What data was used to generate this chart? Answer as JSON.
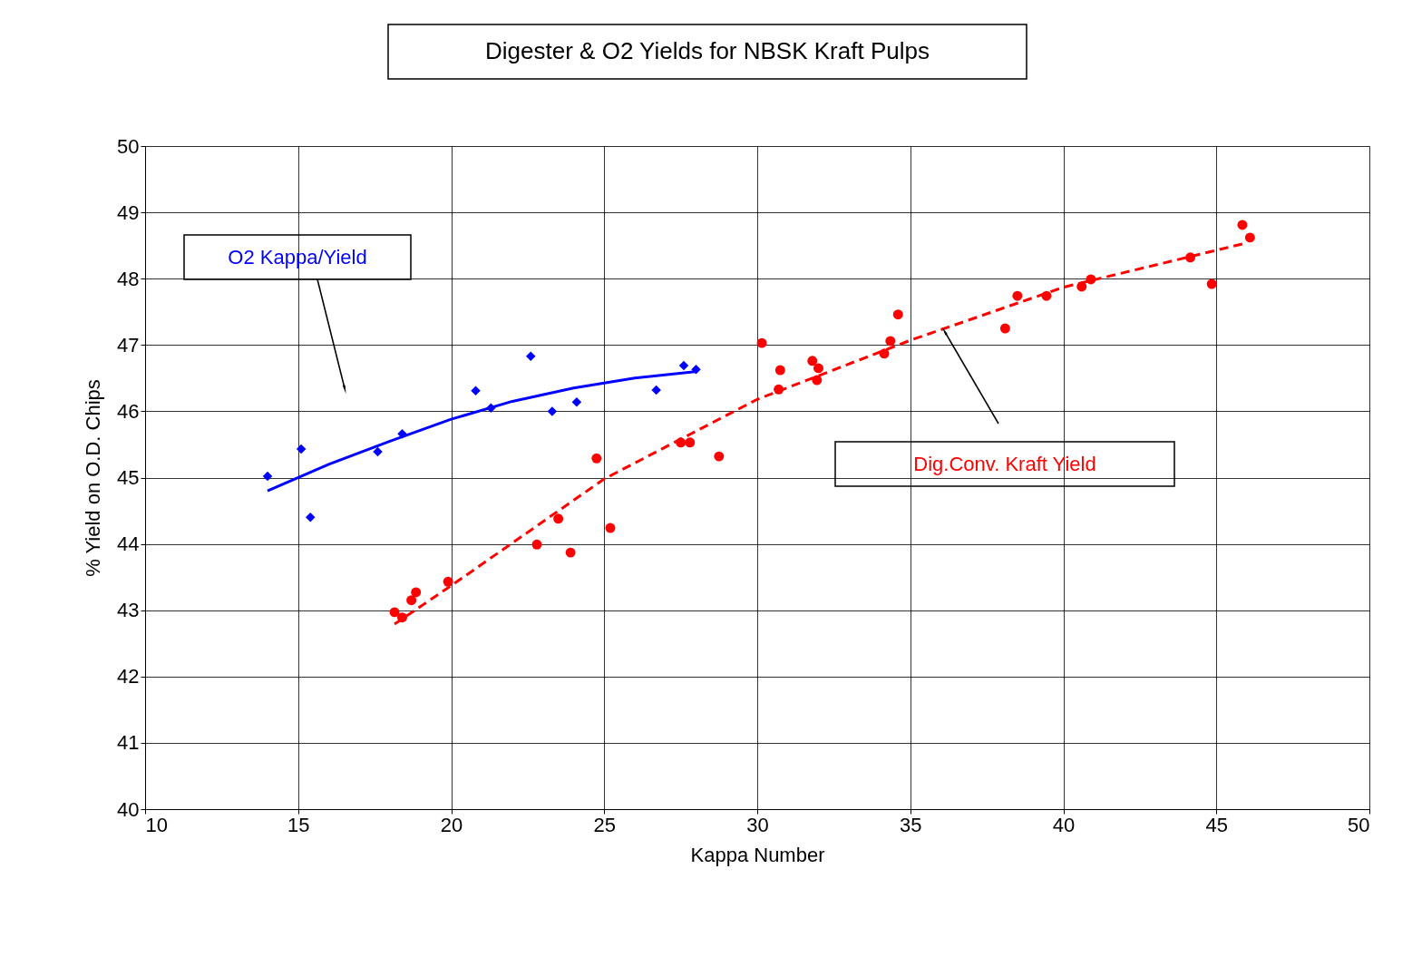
{
  "chart_data": {
    "type": "scatter",
    "title": "Digester & O2 Yields for NBSK Kraft Pulps",
    "xlabel": "Kappa Number",
    "ylabel": "% Yield on O.D. Chips",
    "xlim": [
      10,
      50
    ],
    "ylim": [
      40,
      50
    ],
    "xticks": [
      10,
      15,
      20,
      25,
      30,
      35,
      40,
      45,
      50
    ],
    "yticks": [
      40,
      41,
      42,
      43,
      44,
      45,
      46,
      47,
      48,
      49,
      50
    ],
    "grid": true,
    "legend": false,
    "series": [
      {
        "name": "O2 Kappa/Yield",
        "type": "scatter",
        "marker": "diamond",
        "color": "#0000ff",
        "x": [
          14.0,
          15.1,
          15.4,
          17.6,
          18.4,
          20.8,
          21.3,
          22.6,
          23.3,
          24.1,
          26.7,
          27.6,
          28.0
        ],
        "values": [
          45.02,
          45.43,
          44.4,
          45.39,
          45.66,
          46.31,
          46.05,
          46.83,
          46.0,
          46.14,
          46.32,
          46.69,
          46.63
        ]
      },
      {
        "name": "Dig.Conv. Kraft Yield",
        "type": "scatter",
        "marker": "circle",
        "color": "#ff0000",
        "x": [
          18.15,
          18.4,
          18.7,
          18.85,
          19.9,
          22.8,
          23.5,
          23.9,
          24.75,
          25.2,
          27.5,
          27.8,
          28.75,
          30.15,
          30.7,
          30.75,
          31.8,
          31.95,
          32.0,
          34.15,
          34.35,
          34.6,
          38.1,
          38.5,
          39.45,
          40.6,
          40.9,
          44.15,
          44.85,
          45.85,
          46.1
        ],
        "values": [
          42.97,
          42.89,
          43.15,
          43.27,
          43.43,
          43.99,
          44.38,
          43.87,
          45.29,
          44.24,
          45.53,
          45.53,
          45.32,
          47.03,
          46.33,
          46.62,
          46.76,
          46.47,
          46.65,
          46.87,
          47.06,
          47.46,
          47.25,
          47.74,
          47.74,
          47.88,
          47.99,
          48.32,
          47.92,
          48.81,
          48.62
        ]
      },
      {
        "type": "line",
        "line_style": "solid",
        "color": "#0000ff",
        "x": [
          14,
          16,
          18,
          20,
          22,
          24,
          26,
          28
        ],
        "values": [
          44.8,
          45.2,
          45.55,
          45.88,
          46.15,
          46.35,
          46.5,
          46.6
        ]
      },
      {
        "type": "line",
        "line_style": "dashed",
        "color": "#ff0000",
        "x": [
          18.15,
          20,
          25,
          30,
          35,
          40,
          46
        ],
        "values": [
          42.79,
          43.37,
          44.98,
          46.18,
          47.07,
          47.87,
          48.54
        ]
      }
    ]
  }
}
